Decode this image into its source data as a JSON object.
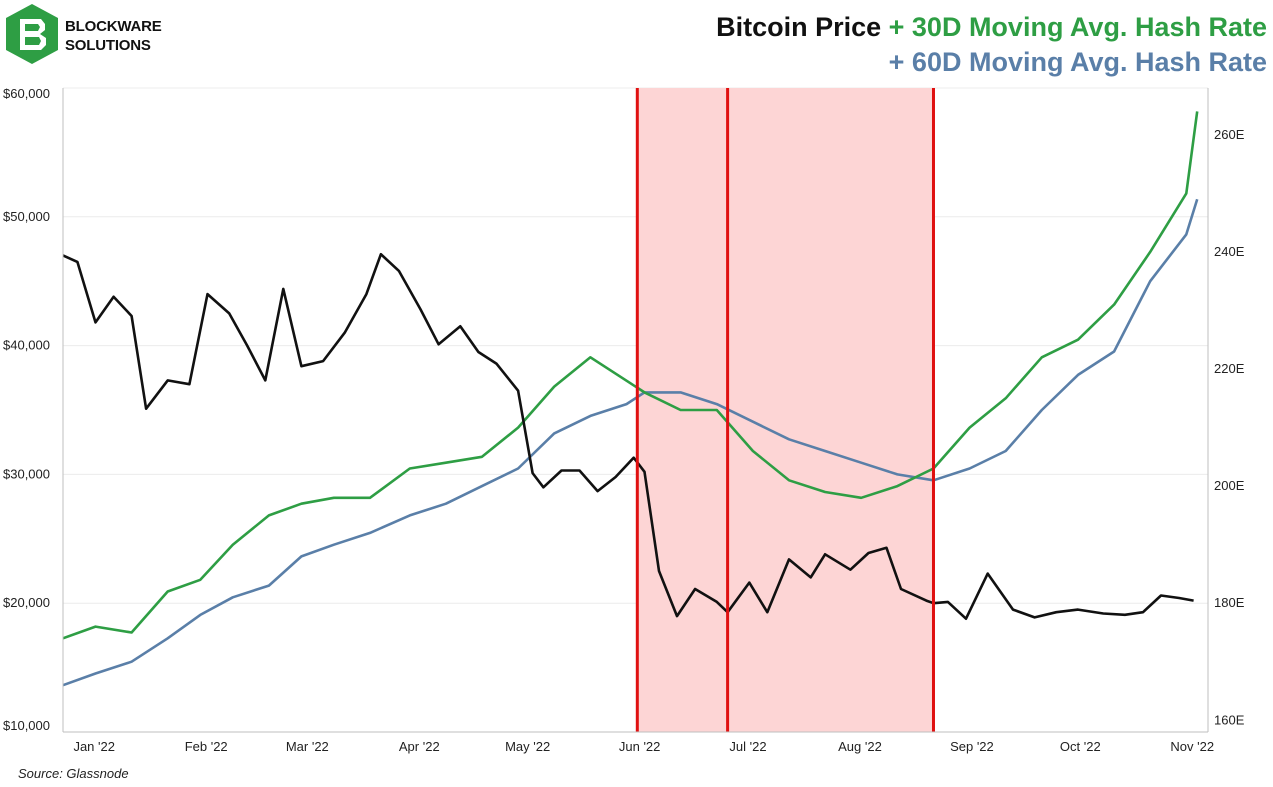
{
  "brand": {
    "line1": "BLOCKWARE",
    "line2": "SOLUTIONS",
    "color": "#2e9e44"
  },
  "chart_data": {
    "type": "line",
    "title_parts": [
      {
        "text": "Bitcoin Price",
        "color": "#111111"
      },
      {
        "text": " + 30D Moving Avg. Hash Rate",
        "color": "#2e9e44"
      }
    ],
    "title_line2": {
      "text": "+ 60D Moving Avg. Hash Rate",
      "color": "#5a7fa8"
    },
    "source": "Source: Glassnode",
    "left_axis": {
      "ticks": [
        "$10,000",
        "$20,000",
        "$30,000",
        "$40,000",
        "$50,000",
        "$60,000"
      ],
      "ylim": [
        10000,
        60000
      ]
    },
    "right_axis": {
      "ticks": [
        "160E",
        "180E",
        "200E",
        "220E",
        "240E",
        "260E"
      ],
      "ylim": [
        158,
        268
      ]
    },
    "x_labels": [
      "Jan '22",
      "Feb '22",
      "Mar '22",
      "Apr '22",
      "May '22",
      "Jun '22",
      "Jul '22",
      "Aug '22",
      "Sep '22",
      "Oct '22",
      "Nov '22"
    ],
    "x_ticks": [
      "2022-01-01",
      "2022-02-01",
      "2022-03-01",
      "2022-04-01",
      "2022-05-01",
      "2022-06-01",
      "2022-07-01",
      "2022-08-01",
      "2022-09-01",
      "2022-10-01",
      "2022-11-01"
    ],
    "x_range": [
      "2021-12-30",
      "2022-11-12"
    ],
    "grid": true,
    "shaded_regions": [
      {
        "start": "2022-06-07",
        "end": "2022-08-28",
        "color": "#fdd5d5"
      }
    ],
    "vertical_lines": [
      {
        "x": "2022-06-07",
        "color": "#e01010"
      },
      {
        "x": "2022-07-02",
        "color": "#e01010"
      },
      {
        "x": "2022-08-28",
        "color": "#e01010"
      }
    ],
    "series": [
      {
        "axis": "right",
        "color": "#5a7fa8",
        "points": [
          [
            "2021-12-30",
            166
          ],
          [
            "2022-01-08",
            168
          ],
          [
            "2022-01-18",
            170
          ],
          [
            "2022-01-28",
            174
          ],
          [
            "2022-02-06",
            178
          ],
          [
            "2022-02-15",
            181
          ],
          [
            "2022-02-25",
            183
          ],
          [
            "2022-03-06",
            188
          ],
          [
            "2022-03-15",
            190
          ],
          [
            "2022-03-25",
            192
          ],
          [
            "2022-04-05",
            195
          ],
          [
            "2022-04-15",
            197
          ],
          [
            "2022-04-25",
            200
          ],
          [
            "2022-05-05",
            203
          ],
          [
            "2022-05-15",
            209
          ],
          [
            "2022-05-25",
            212
          ],
          [
            "2022-06-04",
            214
          ],
          [
            "2022-06-09",
            216
          ],
          [
            "2022-06-19",
            216
          ],
          [
            "2022-06-29",
            214
          ],
          [
            "2022-07-09",
            211
          ],
          [
            "2022-07-19",
            208
          ],
          [
            "2022-07-29",
            206
          ],
          [
            "2022-08-08",
            204
          ],
          [
            "2022-08-18",
            202
          ],
          [
            "2022-08-28",
            201
          ],
          [
            "2022-09-07",
            203
          ],
          [
            "2022-09-17",
            206
          ],
          [
            "2022-09-27",
            213
          ],
          [
            "2022-10-07",
            219
          ],
          [
            "2022-10-17",
            223
          ],
          [
            "2022-10-27",
            235
          ],
          [
            "2022-11-06",
            243
          ],
          [
            "2022-11-09",
            249
          ]
        ]
      },
      {
        "axis": "right",
        "color": "#2e9e44",
        "points": [
          [
            "2021-12-30",
            174
          ],
          [
            "2022-01-08",
            176
          ],
          [
            "2022-01-18",
            175
          ],
          [
            "2022-01-28",
            182
          ],
          [
            "2022-02-06",
            184
          ],
          [
            "2022-02-15",
            190
          ],
          [
            "2022-02-25",
            195
          ],
          [
            "2022-03-06",
            197
          ],
          [
            "2022-03-15",
            198
          ],
          [
            "2022-03-25",
            198
          ],
          [
            "2022-04-05",
            203
          ],
          [
            "2022-04-15",
            204
          ],
          [
            "2022-04-25",
            205
          ],
          [
            "2022-05-05",
            210
          ],
          [
            "2022-05-15",
            217
          ],
          [
            "2022-05-25",
            222
          ],
          [
            "2022-06-04",
            218
          ],
          [
            "2022-06-09",
            216
          ],
          [
            "2022-06-19",
            213
          ],
          [
            "2022-06-29",
            213
          ],
          [
            "2022-07-09",
            206
          ],
          [
            "2022-07-19",
            201
          ],
          [
            "2022-07-29",
            199
          ],
          [
            "2022-08-08",
            198
          ],
          [
            "2022-08-18",
            200
          ],
          [
            "2022-08-28",
            203
          ],
          [
            "2022-09-07",
            210
          ],
          [
            "2022-09-17",
            215
          ],
          [
            "2022-09-27",
            222
          ],
          [
            "2022-10-07",
            225
          ],
          [
            "2022-10-17",
            231
          ],
          [
            "2022-10-27",
            240
          ],
          [
            "2022-11-06",
            250
          ],
          [
            "2022-11-09",
            264
          ]
        ]
      },
      {
        "axis": "left",
        "color": "#111111",
        "points": [
          [
            "2021-12-30",
            47000
          ],
          [
            "2022-01-03",
            46500
          ],
          [
            "2022-01-08",
            41800
          ],
          [
            "2022-01-13",
            43800
          ],
          [
            "2022-01-18",
            42300
          ],
          [
            "2022-01-22",
            35100
          ],
          [
            "2022-01-28",
            37300
          ],
          [
            "2022-02-03",
            37000
          ],
          [
            "2022-02-08",
            44000
          ],
          [
            "2022-02-14",
            42500
          ],
          [
            "2022-02-19",
            40000
          ],
          [
            "2022-02-24",
            37300
          ],
          [
            "2022-03-01",
            44400
          ],
          [
            "2022-03-06",
            38400
          ],
          [
            "2022-03-12",
            38800
          ],
          [
            "2022-03-18",
            41000
          ],
          [
            "2022-03-24",
            44000
          ],
          [
            "2022-03-28",
            47100
          ],
          [
            "2022-04-02",
            45800
          ],
          [
            "2022-04-08",
            42800
          ],
          [
            "2022-04-13",
            40100
          ],
          [
            "2022-04-19",
            41500
          ],
          [
            "2022-04-24",
            39500
          ],
          [
            "2022-04-29",
            38600
          ],
          [
            "2022-05-05",
            36500
          ],
          [
            "2022-05-09",
            30100
          ],
          [
            "2022-05-12",
            29000
          ],
          [
            "2022-05-17",
            30300
          ],
          [
            "2022-05-22",
            30300
          ],
          [
            "2022-05-27",
            28700
          ],
          [
            "2022-06-01",
            29800
          ],
          [
            "2022-06-06",
            31300
          ],
          [
            "2022-06-09",
            30200
          ],
          [
            "2022-06-13",
            22500
          ],
          [
            "2022-06-18",
            19000
          ],
          [
            "2022-06-23",
            21100
          ],
          [
            "2022-06-29",
            20100
          ],
          [
            "2022-07-02",
            19300
          ],
          [
            "2022-07-08",
            21600
          ],
          [
            "2022-07-13",
            19300
          ],
          [
            "2022-07-19",
            23400
          ],
          [
            "2022-07-25",
            22000
          ],
          [
            "2022-07-29",
            23800
          ],
          [
            "2022-08-05",
            22600
          ],
          [
            "2022-08-10",
            23900
          ],
          [
            "2022-08-15",
            24300
          ],
          [
            "2022-08-19",
            21100
          ],
          [
            "2022-08-26",
            20200
          ],
          [
            "2022-08-28",
            20000
          ],
          [
            "2022-09-01",
            20100
          ],
          [
            "2022-09-06",
            18800
          ],
          [
            "2022-09-12",
            22300
          ],
          [
            "2022-09-19",
            19500
          ],
          [
            "2022-09-25",
            18900
          ],
          [
            "2022-10-01",
            19300
          ],
          [
            "2022-10-07",
            19500
          ],
          [
            "2022-10-14",
            19200
          ],
          [
            "2022-10-20",
            19100
          ],
          [
            "2022-10-25",
            19300
          ],
          [
            "2022-10-30",
            20600
          ],
          [
            "2022-11-04",
            20400
          ],
          [
            "2022-11-08",
            20200
          ]
        ]
      }
    ]
  }
}
